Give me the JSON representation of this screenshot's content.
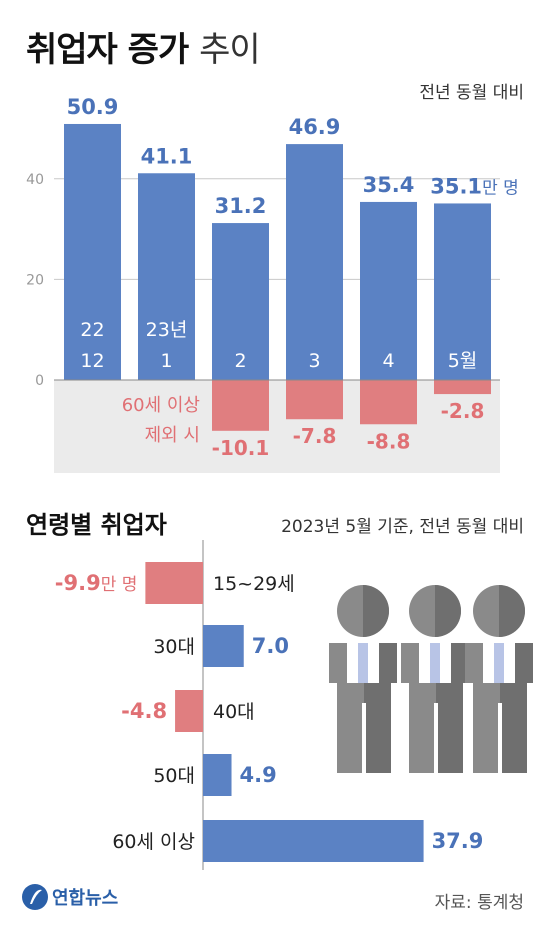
{
  "header": {
    "title_bold": "취업자 증가",
    "title_light": "추이",
    "subtitle": "전년 동월 대비"
  },
  "colors": {
    "positive": "#5b82c4",
    "negative": "#e07e80",
    "positive_text": "#4a72b8",
    "negative_text": "#e07074",
    "panel_bg": "#ebebeb",
    "gridline": "#c8c8c8"
  },
  "chart_data": [
    {
      "type": "bar",
      "title": "취업자 증가 추이",
      "unit": "만 명",
      "yticks": [
        "0",
        "20",
        "40"
      ],
      "ylim": [
        -14,
        58
      ],
      "grid": true,
      "categories": [
        {
          "line1": "22",
          "line2": "12"
        },
        {
          "line1": "23년",
          "line2": "1"
        },
        {
          "line1": "",
          "line2": "2"
        },
        {
          "line1": "",
          "line2": "3"
        },
        {
          "line1": "",
          "line2": "4"
        },
        {
          "line1": "",
          "line2": "5월"
        }
      ],
      "series": [
        {
          "values": [
            50.9,
            41.1,
            31.2,
            46.9,
            35.4,
            35.1
          ]
        },
        {
          "values": [
            null,
            null,
            -10.1,
            -7.8,
            -8.8,
            -2.8
          ]
        }
      ],
      "value_labels": [
        "50.9",
        "41.1",
        "31.2",
        "46.9",
        "35.4",
        "35.1"
      ],
      "last_value_unit": "만 명",
      "excl_labels": [
        "",
        "",
        "-10.1",
        "-7.8",
        "-8.8",
        "-2.8"
      ],
      "excl_note_line1": "60세 이상",
      "excl_note_line2": "제외 시"
    },
    {
      "type": "bar",
      "orientation": "horizontal",
      "title": "연령별 취업자",
      "subtitle": "2023년 5월 기준, 전년 동월 대비",
      "categories": [
        "15~29세",
        "30대",
        "40대",
        "50대",
        "60세 이상"
      ],
      "values": [
        -9.9,
        7.0,
        -4.8,
        4.9,
        37.9
      ],
      "value_labels": [
        "-9.9",
        "7.0",
        "-4.8",
        "4.9",
        "37.9"
      ],
      "first_value_unit": "만 명"
    }
  ],
  "section2": {
    "title": "연령별 취업자",
    "subtitle": "2023년 5월 기준, 전년 동월 대비"
  },
  "footer": {
    "logo": "연합뉴스",
    "source": "자료: 통계청"
  }
}
